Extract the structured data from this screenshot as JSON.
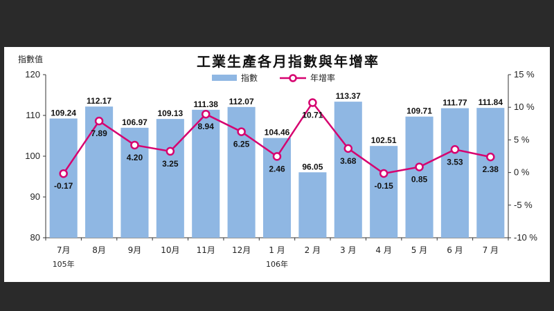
{
  "chart_data": {
    "type": "bar",
    "title": "工業生產各月指數與年增率",
    "ylabel": "指數值",
    "ylim": [
      80,
      120
    ],
    "y2lim": [
      -10,
      15
    ],
    "yticks": [
      "80",
      "90",
      "100",
      "110",
      "120"
    ],
    "y2ticks": [
      "-10 %",
      "-5 %",
      "0 %",
      "5 %",
      "10 %",
      "15 %"
    ],
    "categories": [
      "7月",
      "8月",
      "9月",
      "10月",
      "11月",
      "12月",
      "1 月",
      "2 月",
      "3 月",
      "4 月",
      "5 月",
      "6 月",
      "7 月"
    ],
    "year_labels": [
      {
        "index": 0,
        "text": "105年"
      },
      {
        "index": 6,
        "text": "106年"
      }
    ],
    "series": [
      {
        "name": "指數",
        "type": "bar",
        "axis": "left",
        "color": "#8fb7e3",
        "values": [
          109.24,
          112.17,
          106.97,
          109.13,
          111.38,
          112.07,
          104.46,
          96.05,
          113.37,
          102.51,
          109.71,
          111.77,
          111.84
        ],
        "labels": [
          "109.24",
          "112.17",
          "106.97",
          "109.13",
          "111.38",
          "112.07",
          "104.46",
          "96.05",
          "113.37",
          "102.51",
          "109.71",
          "111.77",
          "111.84"
        ]
      },
      {
        "name": "年增率",
        "type": "line",
        "axis": "right",
        "color": "#d6006f",
        "values": [
          -0.17,
          7.89,
          4.2,
          3.25,
          8.94,
          6.25,
          2.46,
          10.71,
          3.68,
          -0.15,
          0.85,
          3.53,
          2.38
        ],
        "labels": [
          "-0.17",
          "7.89",
          "4.20",
          "3.25",
          "8.94",
          "6.25",
          "2.46",
          "10.71",
          "3.68",
          "-0.15",
          "0.85",
          "3.53",
          "2.38"
        ]
      }
    ],
    "legend_position": "top-center",
    "grid": false
  }
}
